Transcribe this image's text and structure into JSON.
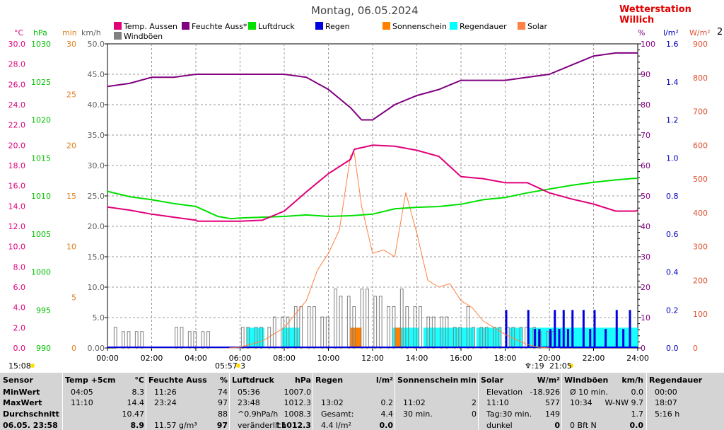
{
  "page_title": "Montag, 06.05.2024",
  "station": "Wetterstation Willich",
  "axis_units": {
    "temp": "°C",
    "pressure": "hPa",
    "minutes": "min",
    "wind": "km/h",
    "percent": "%",
    "rain": "l/m²",
    "solar": "W/m²",
    "cut": "2"
  },
  "colors": {
    "temp": "#e0007a",
    "humidity": "#800080",
    "pressure": "#00e000",
    "rain": "#0000e0",
    "sunshine": "#ff8000",
    "rainduration": "#00ffff",
    "solar": "#ff8040",
    "gust": "#808080",
    "temp_axis": "#e0007a",
    "pressure_axis": "#00e000",
    "min_axis": "#e08020",
    "wind_axis": "#606060",
    "percent_axis": "#800080",
    "rain_axis": "#0000c0",
    "solar_axis": "#e05030"
  },
  "legend": [
    {
      "label": "Temp. Aussen",
      "color": "#e0007a"
    },
    {
      "label": "Feuchte Auss*",
      "color": "#800080"
    },
    {
      "label": "Luftdruck",
      "color": "#00e000"
    },
    {
      "label": "Regen",
      "color": "#0000e0"
    },
    {
      "label": "Sonnenschein",
      "color": "#ff8000"
    },
    {
      "label": "Regendauer",
      "color": "#00ffff"
    },
    {
      "label": "Solar",
      "color": "#ff8040"
    },
    {
      "label": "Windböen",
      "color": "#808080"
    }
  ],
  "ticks": {
    "temp": [
      "30.0",
      "28.0",
      "26.0",
      "24.0",
      "22.0",
      "20.0",
      "18.0",
      "16.0",
      "14.0",
      "12.0",
      "10.0",
      "8.0",
      "6.0",
      "4.0",
      "2.0",
      "0.0"
    ],
    "pressure": [
      "1030",
      "1025",
      "1020",
      "1015",
      "1010",
      "1005",
      "1000",
      "995",
      "990"
    ],
    "minutes": [
      "30",
      "25",
      "20",
      "15",
      "10",
      "5",
      "0"
    ],
    "wind": [
      "50.0",
      "45.0",
      "40.0",
      "35.0",
      "30.0",
      "25.0",
      "20.0",
      "15.0",
      "10.0",
      "5.0",
      "0.00"
    ],
    "percent": [
      "100",
      "90",
      "80",
      "70",
      "60",
      "50",
      "40",
      "30",
      "20",
      "10",
      "0"
    ],
    "rain": [
      "1.6",
      "1.4",
      "1.2",
      "1.0",
      "0.8",
      "0.6",
      "0.4",
      "0.2",
      "0.0"
    ],
    "solar": [
      "900",
      "800",
      "700",
      "600",
      "500",
      "400",
      "300",
      "200",
      "100",
      "0"
    ],
    "time": [
      "00:00",
      "02:00",
      "04:00",
      "06:00",
      "08:00",
      "10:00",
      "12:00",
      "14:00",
      "16:00",
      "18:00",
      "20:00",
      "22:00",
      "24:00"
    ]
  },
  "chart_data": {
    "type": "line",
    "title": "Montag, 06.05.2024",
    "x_range": [
      "00:00",
      "24:00"
    ],
    "grid": true,
    "legend_position": "top",
    "series": [
      {
        "name": "Temp. Aussen",
        "axis": "temp",
        "unit": "°C",
        "x": [
          0,
          1,
          2,
          3,
          4,
          4.08,
          5,
          6,
          7,
          8,
          9,
          10,
          11,
          11.17,
          12,
          13,
          14,
          15,
          16,
          17,
          18,
          19,
          20,
          21,
          22,
          23,
          23.9,
          24
        ],
        "y": [
          13.9,
          13.6,
          13.2,
          12.9,
          12.6,
          12.5,
          12.5,
          12.5,
          12.6,
          13.5,
          15.4,
          17.2,
          18.6,
          19.6,
          20.0,
          19.9,
          19.5,
          18.9,
          16.9,
          16.7,
          16.3,
          16.3,
          15.3,
          14.7,
          14.2,
          13.5,
          13.5,
          13.6
        ]
      },
      {
        "name": "Feuchte Auss*",
        "axis": "percent",
        "unit": "%",
        "x": [
          0,
          1,
          2,
          3,
          4,
          5,
          6,
          7,
          8,
          9,
          10,
          11,
          11.5,
          12,
          13,
          14,
          15,
          16,
          17,
          18,
          19,
          20,
          21,
          22,
          23,
          24
        ],
        "y": [
          86,
          87,
          89,
          89,
          90,
          90,
          90,
          90,
          90,
          89,
          85,
          79,
          75,
          75,
          80,
          83,
          85,
          88,
          88,
          88,
          89,
          90,
          93,
          96,
          97,
          97
        ]
      },
      {
        "name": "Luftdruck",
        "axis": "pressure",
        "unit": "hPa",
        "x": [
          0,
          1,
          2,
          3,
          4,
          5,
          5.6,
          6,
          7,
          8,
          9,
          10,
          11,
          12,
          13,
          14,
          15,
          16,
          17,
          18,
          19,
          20,
          21,
          22,
          23,
          23.8,
          24
        ],
        "y": [
          1010.6,
          1009.9,
          1009.5,
          1009.0,
          1008.6,
          1007.3,
          1007.0,
          1007.1,
          1007.2,
          1007.3,
          1007.5,
          1007.3,
          1007.4,
          1007.6,
          1008.3,
          1008.5,
          1008.6,
          1008.9,
          1009.5,
          1009.8,
          1010.4,
          1010.9,
          1011.4,
          1011.8,
          1012.1,
          1012.3,
          1012.3
        ]
      },
      {
        "name": "Solar",
        "axis": "solar",
        "unit": "W/m²",
        "x": [
          5.5,
          6,
          7,
          8,
          9,
          9.5,
          10,
          10.5,
          11,
          11.17,
          11.5,
          12,
          12.5,
          13,
          13.5,
          14,
          14.5,
          15,
          15.5,
          16,
          16.5,
          17,
          17.5,
          18,
          19,
          19.5,
          20
        ],
        "y": [
          0,
          2,
          20,
          60,
          140,
          230,
          280,
          350,
          570,
          577,
          420,
          280,
          290,
          270,
          460,
          340,
          200,
          180,
          190,
          140,
          120,
          80,
          60,
          40,
          10,
          2,
          0
        ]
      },
      {
        "name": "Regen",
        "axis": "rain",
        "unit": "l/m²",
        "x": [
          18.0,
          19.0,
          19.3,
          19.5,
          20.0,
          20.2,
          20.4,
          20.6,
          20.8,
          21.0,
          21.5,
          21.8,
          22.0,
          22.5,
          23.0,
          23.3,
          23.6
        ],
        "y": [
          0.2,
          0.2,
          0.1,
          0.1,
          0.1,
          0.2,
          0.1,
          0.2,
          0.1,
          0.2,
          0.2,
          0.1,
          0.2,
          0.1,
          0.2,
          0.1,
          0.2
        ]
      },
      {
        "name": "Sonnenschein",
        "axis": "minutes",
        "unit": "min",
        "x": [
          11.0,
          11.1,
          13.0,
          13.1
        ],
        "y": [
          2,
          2,
          2,
          2
        ]
      },
      {
        "name": "Regendauer",
        "axis": "minutes",
        "unit": "min",
        "x": [
          6.5,
          7.0,
          8.0,
          13.0,
          14.0,
          15.0,
          16.0,
          17.0,
          18.0,
          19.0,
          20.0,
          21.0,
          22.0,
          23.0,
          24.0
        ],
        "y": [
          2,
          2,
          2,
          2,
          2,
          2,
          2,
          2,
          2,
          2,
          2,
          2,
          2,
          2,
          2
        ]
      },
      {
        "name": "Windböen",
        "axis": "wind",
        "unit": "km/h",
        "x": [
          0.5,
          1.0,
          3.5,
          4.0,
          6.5,
          7.0,
          8.0,
          9.0,
          10.0,
          10.5,
          11.0,
          11.5,
          12.0,
          12.5,
          13.0,
          13.5,
          14.0,
          14.5,
          15.0,
          15.5,
          16.0,
          16.5,
          17.0,
          18.0,
          19.0,
          20.0
        ],
        "y": [
          3.4,
          2.7,
          3.4,
          2.7,
          3.4,
          3.4,
          5.1,
          6.8,
          5.1,
          9.7,
          8.5,
          6.8,
          9.7,
          8.5,
          6.8,
          9.7,
          6.8,
          6.8,
          5.1,
          5.1,
          3.4,
          6.8,
          3.4,
          3.4,
          3.4,
          2.7
        ]
      }
    ]
  },
  "below_axis": {
    "sunrise_left": "15:08",
    "mark_1": "05:57",
    "mark_1b": "3",
    "mark_2": "♆:19",
    "mark_2b": "21:05"
  },
  "table": {
    "columns": [
      {
        "header": "Sensor",
        "unit": "",
        "rows": [
          "MinWert",
          "MaxWert",
          "Durchschnitt",
          "06.05. 23:58"
        ]
      },
      {
        "header": "Temp +5cm",
        "unit": "°C",
        "rows": [
          [
            "04:05",
            "8.3"
          ],
          [
            "11:10",
            "14.4"
          ],
          [
            "",
            "10.47"
          ],
          [
            "",
            "8.9"
          ]
        ]
      },
      {
        "header": "Feuchte Auss",
        "unit": "%",
        "rows": [
          [
            "11:26",
            "74"
          ],
          [
            "23:24",
            "97"
          ],
          [
            "",
            "88"
          ],
          [
            "11.57 g/m³",
            "97"
          ]
        ]
      },
      {
        "header": "Luftdruck",
        "unit": "hPa",
        "rows": [
          [
            "05:36",
            "1007.0"
          ],
          [
            "23:48",
            "1012.3"
          ],
          [
            "^0.9hPa/h",
            "1008.3"
          ],
          [
            "veränderlich",
            "↑1012.3"
          ]
        ]
      },
      {
        "header": "Regen",
        "unit": "l/m²",
        "rows": [
          [
            "",
            ""
          ],
          [
            "13:02",
            "0.2"
          ],
          [
            "Gesamt:",
            "4.4"
          ],
          [
            "4.4 l/m²",
            "0.0"
          ]
        ]
      },
      {
        "header": "Sonnenschein",
        "unit": "min",
        "rows": [
          [
            "",
            ""
          ],
          [
            "11:02",
            "2"
          ],
          [
            "30 min.",
            "0"
          ],
          [
            "",
            ""
          ]
        ]
      },
      {
        "header": "Solar",
        "unit": "W/m²",
        "rows": [
          [
            "Elevation",
            "-18.926"
          ],
          [
            "11:10",
            "577"
          ],
          [
            "Tag:30 min.",
            "149"
          ],
          [
            "dunkel",
            "0"
          ]
        ]
      },
      {
        "header": "Windböen",
        "unit": "km/h",
        "rows": [
          [
            "Ø 10 min.",
            "0.0"
          ],
          [
            "10:34",
            "W-NW 9.7"
          ],
          [
            "",
            "1.7"
          ],
          [
            "0 Bft N",
            "0.0"
          ]
        ]
      },
      {
        "header": "Regendauer",
        "unit": "",
        "rows": [
          [
            "00:00",
            ""
          ],
          [
            "18:07",
            ""
          ],
          [
            "5:16 h",
            ""
          ],
          [
            "",
            ""
          ]
        ]
      }
    ]
  }
}
